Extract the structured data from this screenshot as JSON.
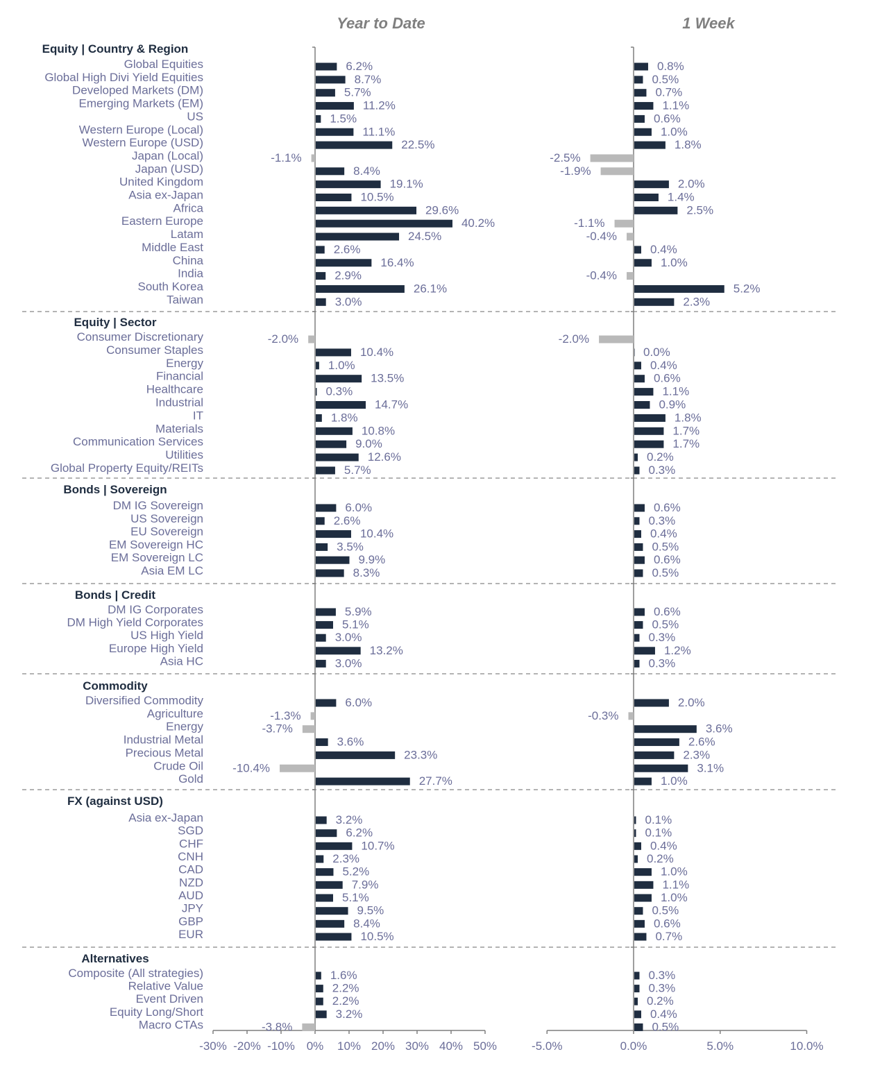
{
  "titles": {
    "ytd": "Year to Date",
    "week": "1 Week"
  },
  "colors": {
    "positive": "#1f2d40",
    "negative": "#b9b9b9",
    "label": "#6b6e99",
    "header": "#1f2d40"
  },
  "chart_data": {
    "type": "bar",
    "orientation": "horizontal",
    "panels": [
      {
        "title": "Year to Date",
        "xlim": [
          -30,
          50
        ],
        "ticks": [
          -30,
          -20,
          -10,
          0,
          10,
          20,
          30,
          40,
          50
        ],
        "tick_labels": [
          "-30%",
          "-20%",
          "-10%",
          "0%",
          "10%",
          "20%",
          "30%",
          "40%",
          "50%"
        ]
      },
      {
        "title": "1 Week",
        "xlim": [
          -5,
          10
        ],
        "ticks": [
          -5,
          0,
          5,
          10
        ],
        "tick_labels": [
          "-5.0%",
          "0.0%",
          "5.0%",
          "10.0%"
        ]
      }
    ],
    "groups": [
      {
        "name": "Equity | Country & Region",
        "items": [
          {
            "label": "Global Equities",
            "ytd": 6.2,
            "ytd_label": "6.2%",
            "week": 0.8,
            "week_label": "0.8%"
          },
          {
            "label": "Global High Divi Yield Equities",
            "ytd": 8.7,
            "ytd_label": "8.7%",
            "week": 0.5,
            "week_label": "0.5%"
          },
          {
            "label": "Developed Markets (DM)",
            "ytd": 5.7,
            "ytd_label": "5.7%",
            "week": 0.7,
            "week_label": "0.7%"
          },
          {
            "label": "Emerging Markets (EM)",
            "ytd": 11.2,
            "ytd_label": "11.2%",
            "week": 1.1,
            "week_label": "1.1%"
          },
          {
            "label": "US",
            "ytd": 1.5,
            "ytd_label": "1.5%",
            "week": 0.6,
            "week_label": "0.6%"
          },
          {
            "label": "Western Europe (Local)",
            "ytd": 11.1,
            "ytd_label": "11.1%",
            "week": 1.0,
            "week_label": "1.0%"
          },
          {
            "label": "Western Europe (USD)",
            "ytd": 22.5,
            "ytd_label": "22.5%",
            "week": 1.8,
            "week_label": "1.8%"
          },
          {
            "label": "Japan (Local)",
            "ytd": -1.1,
            "ytd_label": "-1.1%",
            "week": -2.5,
            "week_label": "-2.5%"
          },
          {
            "label": "Japan (USD)",
            "ytd": 8.4,
            "ytd_label": "8.4%",
            "week": -1.9,
            "week_label": "-1.9%"
          },
          {
            "label": "United Kingdom",
            "ytd": 19.1,
            "ytd_label": "19.1%",
            "week": 2.0,
            "week_label": "2.0%"
          },
          {
            "label": "Asia ex-Japan",
            "ytd": 10.5,
            "ytd_label": "10.5%",
            "week": 1.4,
            "week_label": "1.4%"
          },
          {
            "label": "Africa",
            "ytd": 29.6,
            "ytd_label": "29.6%",
            "week": 2.5,
            "week_label": "2.5%"
          },
          {
            "label": "Eastern Europe",
            "ytd": 40.2,
            "ytd_label": "40.2%",
            "week": -1.1,
            "week_label": "-1.1%"
          },
          {
            "label": "Latam",
            "ytd": 24.5,
            "ytd_label": "24.5%",
            "week": -0.4,
            "week_label": "-0.4%"
          },
          {
            "label": "Middle East",
            "ytd": 2.6,
            "ytd_label": "2.6%",
            "week": 0.4,
            "week_label": "0.4%"
          },
          {
            "label": "China",
            "ytd": 16.4,
            "ytd_label": "16.4%",
            "week": 1.0,
            "week_label": "1.0%"
          },
          {
            "label": "India",
            "ytd": 2.9,
            "ytd_label": "2.9%",
            "week": -0.4,
            "week_label": "-0.4%"
          },
          {
            "label": "South Korea",
            "ytd": 26.1,
            "ytd_label": "26.1%",
            "week": 5.2,
            "week_label": "5.2%"
          },
          {
            "label": "Taiwan",
            "ytd": 3.0,
            "ytd_label": "3.0%",
            "week": 2.3,
            "week_label": "2.3%"
          }
        ]
      },
      {
        "name": "Equity | Sector",
        "items": [
          {
            "label": "Consumer Discretionary",
            "ytd": -2.0,
            "ytd_label": "-2.0%",
            "week": -2.0,
            "week_label": "-2.0%"
          },
          {
            "label": "Consumer Staples",
            "ytd": 10.4,
            "ytd_label": "10.4%",
            "week": 0.0,
            "week_label": "0.0%"
          },
          {
            "label": "Energy",
            "ytd": 1.0,
            "ytd_label": "1.0%",
            "week": 0.4,
            "week_label": "0.4%"
          },
          {
            "label": "Financial",
            "ytd": 13.5,
            "ytd_label": "13.5%",
            "week": 0.6,
            "week_label": "0.6%"
          },
          {
            "label": "Healthcare",
            "ytd": 0.3,
            "ytd_label": "0.3%",
            "week": 1.1,
            "week_label": "1.1%"
          },
          {
            "label": "Industrial",
            "ytd": 14.7,
            "ytd_label": "14.7%",
            "week": 0.9,
            "week_label": "0.9%"
          },
          {
            "label": "IT",
            "ytd": 1.8,
            "ytd_label": "1.8%",
            "week": 1.8,
            "week_label": "1.8%"
          },
          {
            "label": "Materials",
            "ytd": 10.8,
            "ytd_label": "10.8%",
            "week": 1.7,
            "week_label": "1.7%"
          },
          {
            "label": "Communication Services",
            "ytd": 9.0,
            "ytd_label": "9.0%",
            "week": 1.7,
            "week_label": "1.7%"
          },
          {
            "label": "Utilities",
            "ytd": 12.6,
            "ytd_label": "12.6%",
            "week": 0.2,
            "week_label": "0.2%"
          },
          {
            "label": "Global Property Equity/REITs",
            "ytd": 5.7,
            "ytd_label": "5.7%",
            "week": 0.3,
            "week_label": "0.3%"
          }
        ]
      },
      {
        "name": "Bonds | Sovereign",
        "items": [
          {
            "label": "DM IG Sovereign",
            "ytd": 6.0,
            "ytd_label": "6.0%",
            "week": 0.6,
            "week_label": "0.6%"
          },
          {
            "label": "US Sovereign",
            "ytd": 2.6,
            "ytd_label": "2.6%",
            "week": 0.3,
            "week_label": "0.3%"
          },
          {
            "label": "EU Sovereign",
            "ytd": 10.4,
            "ytd_label": "10.4%",
            "week": 0.4,
            "week_label": "0.4%"
          },
          {
            "label": "EM Sovereign HC",
            "ytd": 3.5,
            "ytd_label": "3.5%",
            "week": 0.5,
            "week_label": "0.5%"
          },
          {
            "label": "EM Sovereign LC",
            "ytd": 9.9,
            "ytd_label": "9.9%",
            "week": 0.6,
            "week_label": "0.6%"
          },
          {
            "label": "Asia EM LC",
            "ytd": 8.3,
            "ytd_label": "8.3%",
            "week": 0.5,
            "week_label": "0.5%"
          }
        ]
      },
      {
        "name": "Bonds | Credit",
        "items": [
          {
            "label": "DM IG Corporates",
            "ytd": 5.9,
            "ytd_label": "5.9%",
            "week": 0.6,
            "week_label": "0.6%"
          },
          {
            "label": "DM High Yield Corporates",
            "ytd": 5.1,
            "ytd_label": "5.1%",
            "week": 0.5,
            "week_label": "0.5%"
          },
          {
            "label": "US High Yield",
            "ytd": 3.0,
            "ytd_label": "3.0%",
            "week": 0.3,
            "week_label": "0.3%"
          },
          {
            "label": "Europe High Yield",
            "ytd": 13.2,
            "ytd_label": "13.2%",
            "week": 1.2,
            "week_label": "1.2%"
          },
          {
            "label": "Asia HC",
            "ytd": 3.0,
            "ytd_label": "3.0%",
            "week": 0.3,
            "week_label": "0.3%"
          }
        ]
      },
      {
        "name": "Commodity",
        "items": [
          {
            "label": "Diversified Commodity",
            "ytd": 6.0,
            "ytd_label": "6.0%",
            "week": 2.0,
            "week_label": "2.0%"
          },
          {
            "label": "Agriculture",
            "ytd": -1.3,
            "ytd_label": "-1.3%",
            "week": -0.3,
            "week_label": "-0.3%"
          },
          {
            "label": "Energy",
            "ytd": -3.7,
            "ytd_label": "-3.7%",
            "week": 3.6,
            "week_label": "3.6%"
          },
          {
            "label": "Industrial Metal",
            "ytd": 3.6,
            "ytd_label": "3.6%",
            "week": 2.6,
            "week_label": "2.6%"
          },
          {
            "label": "Precious Metal",
            "ytd": 23.3,
            "ytd_label": "23.3%",
            "week": 2.3,
            "week_label": "2.3%"
          },
          {
            "label": "Crude Oil",
            "ytd": -10.4,
            "ytd_label": "-10.4%",
            "week": 3.1,
            "week_label": "3.1%"
          },
          {
            "label": "Gold",
            "ytd": 27.7,
            "ytd_label": "27.7%",
            "week": 1.0,
            "week_label": "1.0%"
          }
        ]
      },
      {
        "name": "FX (against USD)",
        "items": [
          {
            "label": "Asia ex-Japan",
            "ytd": 3.2,
            "ytd_label": "3.2%",
            "week": 0.1,
            "week_label": "0.1%"
          },
          {
            "label": "SGD",
            "ytd": 6.2,
            "ytd_label": "6.2%",
            "week": 0.1,
            "week_label": "0.1%"
          },
          {
            "label": "CHF",
            "ytd": 10.7,
            "ytd_label": "10.7%",
            "week": 0.4,
            "week_label": "0.4%"
          },
          {
            "label": "CNH",
            "ytd": 2.3,
            "ytd_label": "2.3%",
            "week": 0.2,
            "week_label": "0.2%"
          },
          {
            "label": "CAD",
            "ytd": 5.2,
            "ytd_label": "5.2%",
            "week": 1.0,
            "week_label": "1.0%"
          },
          {
            "label": "NZD",
            "ytd": 7.9,
            "ytd_label": "7.9%",
            "week": 1.1,
            "week_label": "1.1%"
          },
          {
            "label": "AUD",
            "ytd": 5.1,
            "ytd_label": "5.1%",
            "week": 1.0,
            "week_label": "1.0%"
          },
          {
            "label": "JPY",
            "ytd": 9.5,
            "ytd_label": "9.5%",
            "week": 0.5,
            "week_label": "0.5%"
          },
          {
            "label": "GBP",
            "ytd": 8.4,
            "ytd_label": "8.4%",
            "week": 0.6,
            "week_label": "0.6%"
          },
          {
            "label": "EUR",
            "ytd": 10.5,
            "ytd_label": "10.5%",
            "week": 0.7,
            "week_label": "0.7%"
          }
        ]
      },
      {
        "name": "Alternatives",
        "items": [
          {
            "label": "Composite (All strategies)",
            "ytd": 1.6,
            "ytd_label": "1.6%",
            "week": 0.3,
            "week_label": "0.3%"
          },
          {
            "label": "Relative Value",
            "ytd": 2.2,
            "ytd_label": "2.2%",
            "week": 0.3,
            "week_label": "0.3%"
          },
          {
            "label": "Event Driven",
            "ytd": 2.2,
            "ytd_label": "2.2%",
            "week": 0.2,
            "week_label": "0.2%"
          },
          {
            "label": "Equity Long/Short",
            "ytd": 3.2,
            "ytd_label": "3.2%",
            "week": 0.4,
            "week_label": "0.4%"
          },
          {
            "label": "Macro CTAs",
            "ytd": -3.8,
            "ytd_label": "-3.8%",
            "week": 0.5,
            "week_label": "0.5%"
          }
        ]
      }
    ]
  }
}
